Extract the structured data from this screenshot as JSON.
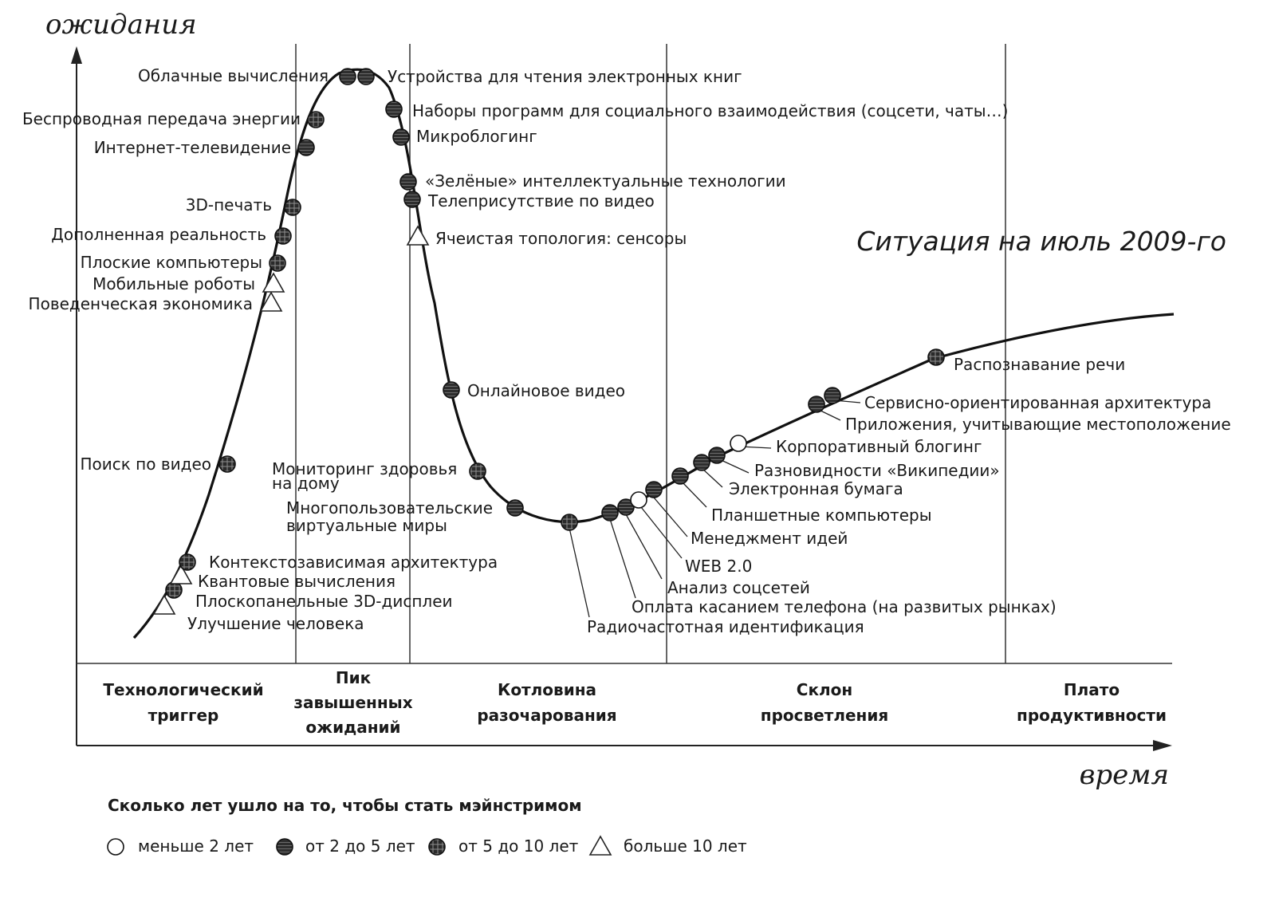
{
  "chart": {
    "y_axis_label": "ожидания",
    "x_axis_label": "время",
    "subtitle": "Ситуация на июль 2009-го"
  },
  "phases": [
    {
      "line1": "Технологический",
      "line2": "триггер",
      "line3": ""
    },
    {
      "line1": "Пик",
      "line2": "завышенных",
      "line3": "ожиданий"
    },
    {
      "line1": "Котловина",
      "line2": "разочарования",
      "line3": ""
    },
    {
      "line1": "Склон",
      "line2": "просветления",
      "line3": ""
    },
    {
      "line1": "Плато",
      "line2": "продуктивности",
      "line3": ""
    }
  ],
  "technologies": [
    {
      "label": "Улучшение человека",
      "marker": "more-10"
    },
    {
      "label": "Плоскопанельные 3D-дисплеи",
      "marker": "5-10"
    },
    {
      "label": "Квантовые вычисления",
      "marker": "more-10"
    },
    {
      "label": "Контекстозависимая архитектура",
      "marker": "5-10"
    },
    {
      "label": "Поиск по видео",
      "marker": "5-10"
    },
    {
      "label": "Поведенческая экономика",
      "marker": "more-10"
    },
    {
      "label": "Мобильные роботы",
      "marker": "more-10"
    },
    {
      "label": "Плоские компьютеры",
      "marker": "5-10"
    },
    {
      "label": "Дополненная реальность",
      "marker": "5-10"
    },
    {
      "label": "3D-печать",
      "marker": "5-10"
    },
    {
      "label": "Интернет-телевидение",
      "marker": "2-5"
    },
    {
      "label": "Беспроводная передача энергии",
      "marker": "5-10"
    },
    {
      "label": "Облачные вычисления",
      "marker": "2-5"
    },
    {
      "label": "Устройства для чтения электронных книг",
      "marker": "2-5"
    },
    {
      "label": "Наборы программ для социального взаимодействия (соцсети, чаты…)",
      "marker": "2-5"
    },
    {
      "label": "Микроблогинг",
      "marker": "2-5"
    },
    {
      "label": "«Зелёные» интеллектуальные технологии",
      "marker": "2-5"
    },
    {
      "label": "Телеприсутствие по видео",
      "marker": "2-5"
    },
    {
      "label": "Ячеистая топология: сенсоры",
      "marker": "more-10"
    },
    {
      "label": "Онлайновое видео",
      "marker": "2-5"
    },
    {
      "label": "Мониторинг здоровья на дому",
      "label_line1": "Мониторинг здоровья",
      "label_line2": "на дому",
      "marker": "5-10"
    },
    {
      "label": "Многопользовательские виртуальные миры",
      "label_line1": "Многопользовательские",
      "label_line2": "виртуальные миры",
      "marker": "2-5"
    },
    {
      "label": "Радиочастотная идентификация",
      "marker": "5-10"
    },
    {
      "label": "Оплата касанием телефона (на развитых рынках)",
      "marker": "2-5"
    },
    {
      "label": "Анализ соцсетей",
      "marker": "2-5"
    },
    {
      "label": "WEB 2.0",
      "marker": "less-2"
    },
    {
      "label": "Менеджмент идей",
      "marker": "2-5"
    },
    {
      "label": "Планшетные компьютеры",
      "marker": "2-5"
    },
    {
      "label": "Электронная бумага",
      "marker": "2-5"
    },
    {
      "label": "Разновидности «Википедии»",
      "marker": "2-5"
    },
    {
      "label": "Корпоративный блогинг",
      "marker": "less-2"
    },
    {
      "label": "Приложения, учитывающие местоположение",
      "marker": "2-5"
    },
    {
      "label": "Сервисно-ориентированная архитектура",
      "marker": "2-5"
    },
    {
      "label": "Распознавание речи",
      "marker": "5-10"
    }
  ],
  "legend": {
    "title": "Сколько лет ушло на то, чтобы стать мэйнстримом",
    "items": [
      {
        "key": "less-2",
        "label": "меньше 2 лет"
      },
      {
        "key": "2-5",
        "label": "от 2 до 5 лет"
      },
      {
        "key": "5-10",
        "label": "от 5 до 10 лет"
      },
      {
        "key": "more-10",
        "label": "больше 10 лет"
      }
    ]
  }
}
